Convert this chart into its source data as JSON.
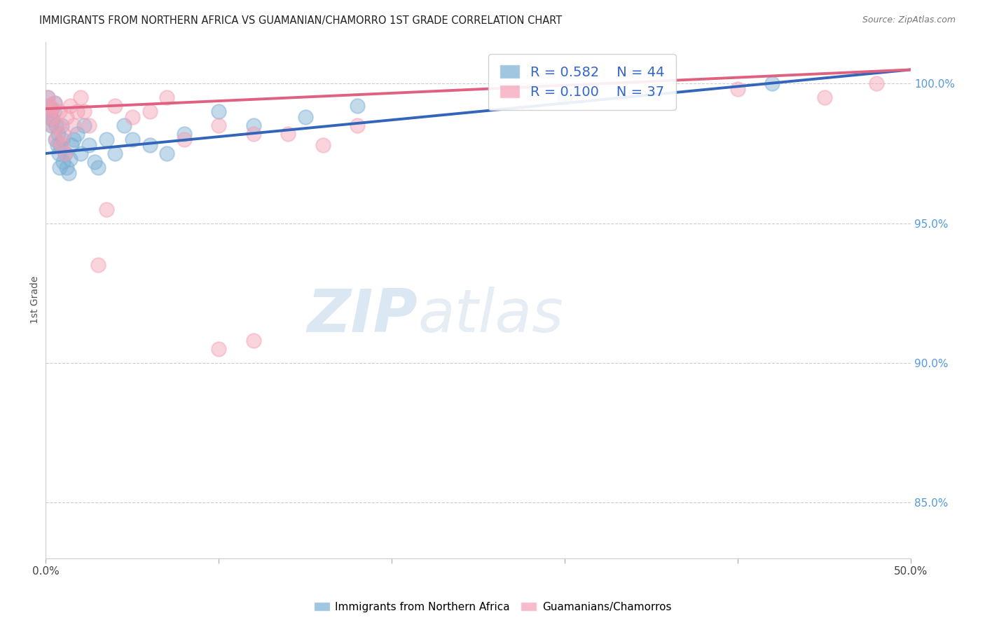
{
  "title": "IMMIGRANTS FROM NORTHERN AFRICA VS GUAMANIAN/CHAMORRO 1ST GRADE CORRELATION CHART",
  "source": "Source: ZipAtlas.com",
  "ylabel": "1st Grade",
  "xlim": [
    0.0,
    50.0
  ],
  "ylim": [
    83.0,
    101.5
  ],
  "x_tick_positions": [
    0,
    10,
    20,
    30,
    40,
    50
  ],
  "x_tick_labels": [
    "0.0%",
    "",
    "",
    "",
    "",
    "50.0%"
  ],
  "y_ticks_right": [
    85.0,
    90.0,
    95.0,
    100.0
  ],
  "y_tick_labels_right": [
    "85.0%",
    "90.0%",
    "95.0%",
    "100.0%"
  ],
  "blue_R": 0.582,
  "blue_N": 44,
  "pink_R": 0.1,
  "pink_N": 37,
  "blue_color": "#7aafd4",
  "pink_color": "#f4a0b5",
  "blue_line_color": "#3366bb",
  "pink_line_color": "#e06080",
  "blue_scatter_x": [
    0.1,
    0.15,
    0.2,
    0.25,
    0.3,
    0.35,
    0.4,
    0.45,
    0.5,
    0.55,
    0.6,
    0.65,
    0.7,
    0.75,
    0.8,
    0.85,
    0.9,
    0.95,
    1.0,
    1.1,
    1.2,
    1.3,
    1.4,
    1.5,
    1.6,
    1.8,
    2.0,
    2.2,
    2.5,
    2.8,
    3.0,
    3.5,
    4.0,
    4.5,
    5.0,
    6.0,
    7.0,
    8.0,
    10.0,
    12.0,
    15.0,
    18.0,
    30.0,
    42.0
  ],
  "blue_scatter_y": [
    99.5,
    99.0,
    99.2,
    98.8,
    98.5,
    99.1,
    98.7,
    99.0,
    99.3,
    98.0,
    98.5,
    97.8,
    98.2,
    97.5,
    97.0,
    97.8,
    98.5,
    98.0,
    97.2,
    97.5,
    97.0,
    96.8,
    97.3,
    97.8,
    98.0,
    98.2,
    97.5,
    98.5,
    97.8,
    97.2,
    97.0,
    98.0,
    97.5,
    98.5,
    98.0,
    97.8,
    97.5,
    98.2,
    99.0,
    98.5,
    98.8,
    99.2,
    99.5,
    100.0
  ],
  "pink_scatter_x": [
    0.1,
    0.15,
    0.2,
    0.3,
    0.35,
    0.4,
    0.5,
    0.6,
    0.7,
    0.8,
    0.9,
    1.0,
    1.1,
    1.2,
    1.4,
    1.6,
    1.8,
    2.0,
    2.2,
    2.5,
    3.0,
    3.5,
    4.0,
    5.0,
    6.0,
    7.0,
    8.0,
    10.0,
    12.0,
    14.0,
    16.0,
    18.0,
    10.0,
    12.0,
    40.0,
    45.0,
    48.0
  ],
  "pink_scatter_y": [
    99.5,
    99.2,
    99.0,
    98.8,
    99.1,
    98.5,
    99.3,
    98.0,
    98.5,
    99.0,
    97.8,
    98.2,
    97.5,
    98.8,
    99.2,
    98.5,
    99.0,
    99.5,
    99.0,
    98.5,
    93.5,
    95.5,
    99.2,
    98.8,
    99.0,
    99.5,
    98.0,
    90.5,
    90.8,
    98.2,
    97.8,
    98.5,
    98.5,
    98.2,
    99.8,
    99.5,
    100.0
  ],
  "watermark_zip": "ZIP",
  "watermark_atlas": "atlas",
  "background_color": "#ffffff",
  "grid_color": "#cccccc"
}
